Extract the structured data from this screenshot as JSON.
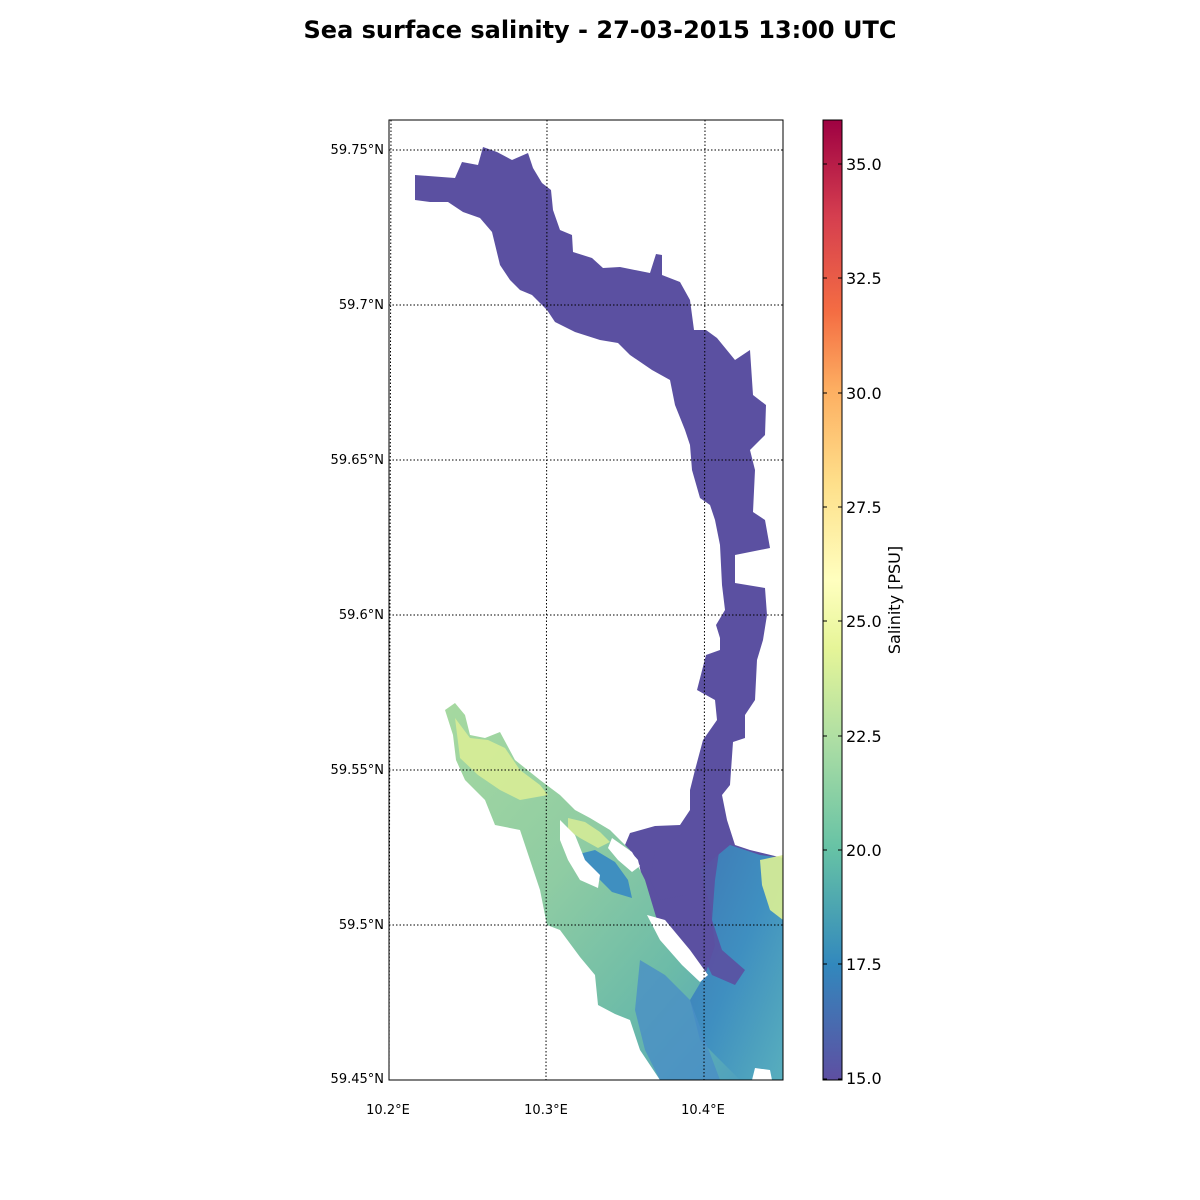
{
  "title": "Sea surface salinity - 27-03-2015 13:00 UTC",
  "map": {
    "lat_labels": [
      "59.75°N",
      "59.7°N",
      "59.65°N",
      "59.6°N",
      "59.55°N",
      "59.5°N",
      "59.45°N"
    ],
    "lon_labels": [
      "10.2°E",
      "10.3°E",
      "10.4°E"
    ],
    "lat_range": [
      59.45,
      59.76
    ],
    "lon_range": [
      10.2,
      10.45
    ],
    "gridlines": "dotted"
  },
  "colorbar": {
    "label": "Salinity [PSU]",
    "ticks": [
      "15.0",
      "17.5",
      "20.0",
      "22.5",
      "25.0",
      "27.5",
      "30.0",
      "32.5",
      "35.0"
    ],
    "range": [
      15.0,
      36.0
    ],
    "colormap": "Spectral_r",
    "colors": [
      "#5e4fa2",
      "#3288bd",
      "#66c2a5",
      "#abdda4",
      "#e6f598",
      "#ffffbf",
      "#fee08b",
      "#fdae61",
      "#f46d43",
      "#d53e4f",
      "#9e0142"
    ]
  },
  "field_colors": {
    "fresh": "#5b50a1",
    "mid_blue": "#3f8fc0",
    "teal": "#6cbba8",
    "light_green": "#a6d9a0",
    "yellow_green": "#dcef95"
  }
}
